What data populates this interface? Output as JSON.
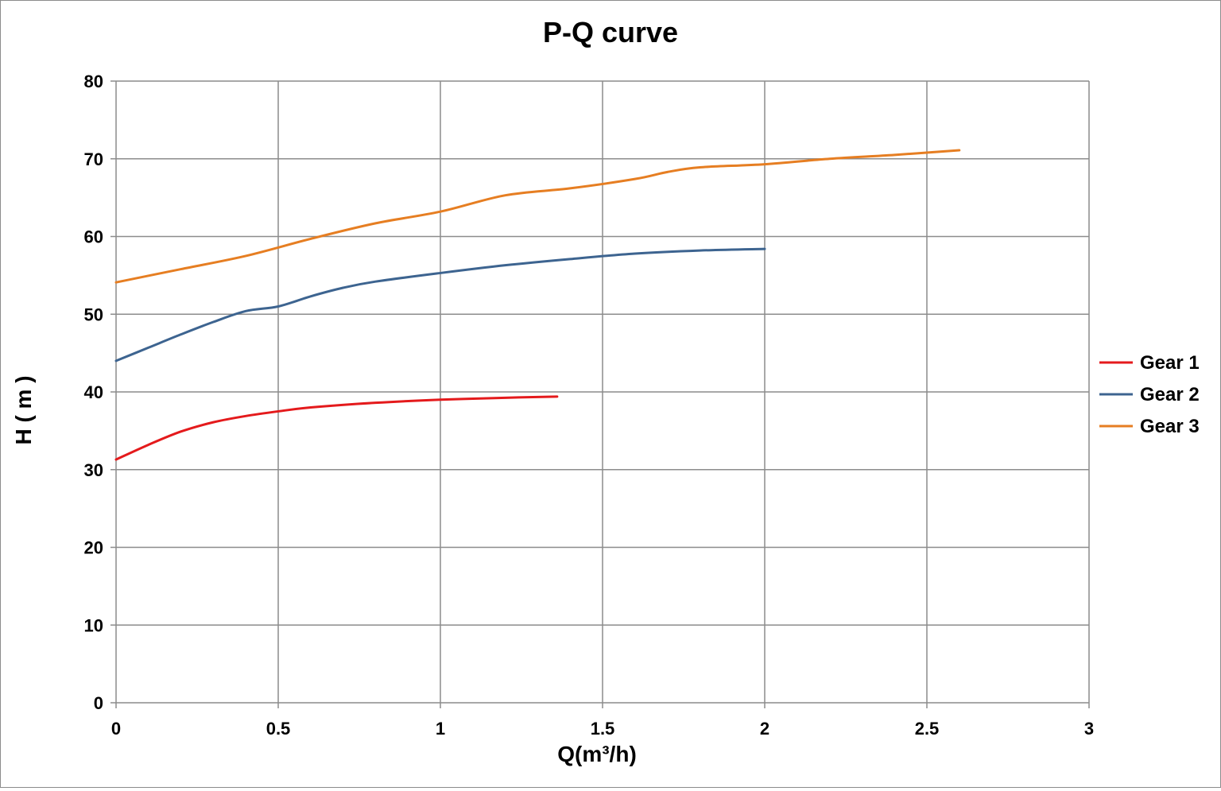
{
  "chart_data": {
    "type": "line",
    "title": "P-Q  curve",
    "xlabel": "Q(m³/h)",
    "ylabel": "H ( m )",
    "xlim": [
      0,
      3
    ],
    "ylim": [
      0,
      80
    ],
    "x_ticks": [
      0,
      0.5,
      1,
      1.5,
      2,
      2.5,
      3
    ],
    "y_ticks": [
      0,
      10,
      20,
      30,
      40,
      50,
      60,
      70,
      80
    ],
    "x_tick_labels": [
      "0",
      "0.5",
      "1",
      "1.5",
      "2",
      "2.5",
      "3"
    ],
    "y_tick_labels": [
      "0",
      "10",
      "20",
      "30",
      "40",
      "50",
      "60",
      "70",
      "80"
    ],
    "grid": true,
    "legend_position": "right",
    "series": [
      {
        "name": "Gear 1",
        "color": "#e41a1c",
        "points": [
          [
            0,
            31.3
          ],
          [
            0.1,
            33.2
          ],
          [
            0.2,
            34.9
          ],
          [
            0.3,
            36.1
          ],
          [
            0.4,
            36.9
          ],
          [
            0.5,
            37.5
          ],
          [
            0.6,
            38.0
          ],
          [
            0.8,
            38.6
          ],
          [
            1.0,
            39.0
          ],
          [
            1.2,
            39.25
          ],
          [
            1.36,
            39.4
          ]
        ]
      },
      {
        "name": "Gear 2",
        "color": "#3d6490",
        "points": [
          [
            0,
            44.0
          ],
          [
            0.1,
            45.7
          ],
          [
            0.2,
            47.4
          ],
          [
            0.3,
            49.0
          ],
          [
            0.4,
            50.4
          ],
          [
            0.5,
            51.0
          ],
          [
            0.6,
            52.3
          ],
          [
            0.7,
            53.4
          ],
          [
            0.8,
            54.2
          ],
          [
            1.0,
            55.3
          ],
          [
            1.2,
            56.3
          ],
          [
            1.4,
            57.1
          ],
          [
            1.6,
            57.8
          ],
          [
            1.8,
            58.2
          ],
          [
            2.0,
            58.4
          ]
        ]
      },
      {
        "name": "Gear 3",
        "color": "#e67e22",
        "points": [
          [
            0,
            54.1
          ],
          [
            0.2,
            55.8
          ],
          [
            0.4,
            57.5
          ],
          [
            0.6,
            59.7
          ],
          [
            0.8,
            61.7
          ],
          [
            1.0,
            63.2
          ],
          [
            1.2,
            65.3
          ],
          [
            1.4,
            66.2
          ],
          [
            1.6,
            67.4
          ],
          [
            1.7,
            68.3
          ],
          [
            1.8,
            68.9
          ],
          [
            2.0,
            69.3
          ],
          [
            2.2,
            70.0
          ],
          [
            2.4,
            70.5
          ],
          [
            2.6,
            71.1
          ]
        ]
      }
    ]
  }
}
